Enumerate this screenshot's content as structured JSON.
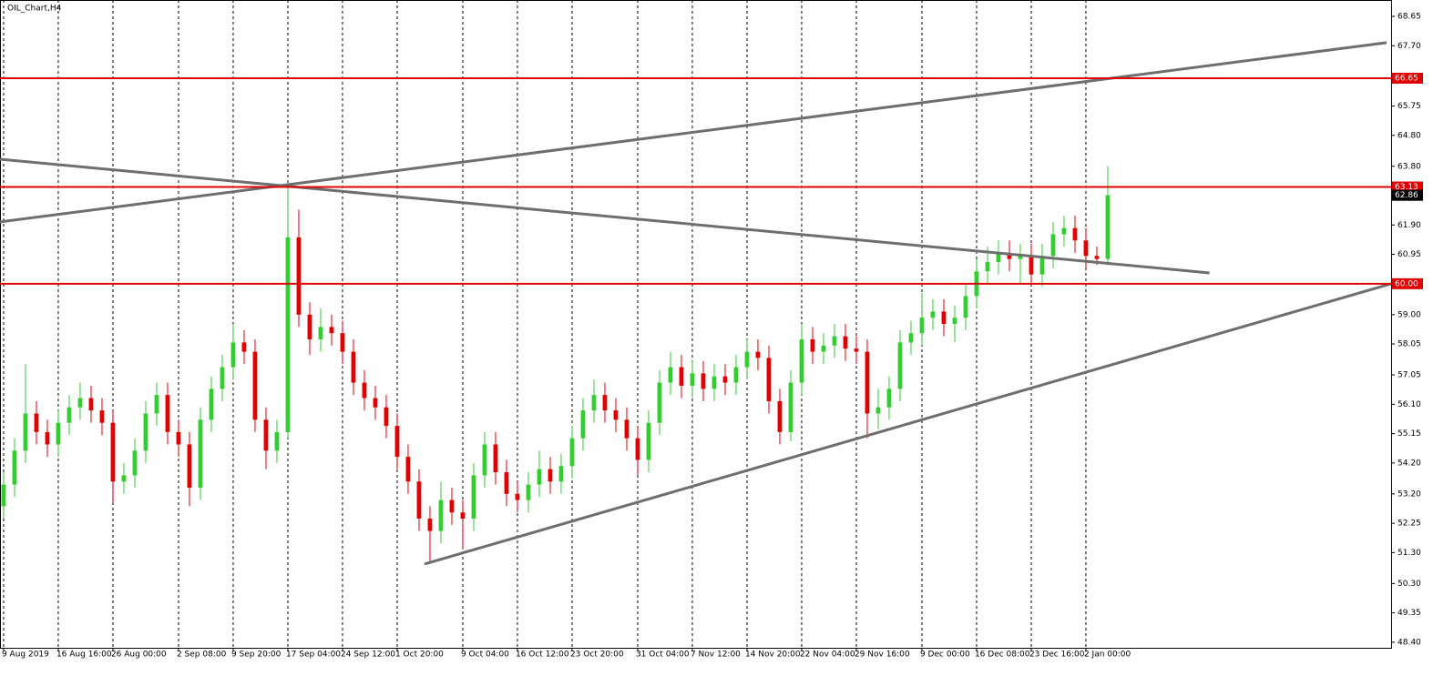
{
  "chart_data": {
    "type": "candlestick",
    "title": "OIL_Chart,H4",
    "open": [
      52.8,
      53.5,
      54.6,
      55.8,
      55.2,
      54.8,
      55.5,
      56.0,
      56.3,
      55.9,
      55.5,
      53.6,
      53.8,
      54.6,
      55.8,
      56.4,
      55.2,
      54.8,
      53.4,
      55.6,
      56.6,
      57.3,
      58.1,
      57.8,
      55.6,
      54.6,
      55.2,
      61.5,
      59.0,
      58.2,
      58.6,
      58.4,
      57.8,
      56.8,
      56.3,
      56.0,
      55.4,
      54.4,
      53.6,
      52.4,
      52.0,
      53.0,
      52.6,
      52.4,
      53.8,
      54.8,
      53.9,
      53.2,
      53.0,
      53.5,
      54.0,
      53.6,
      54.1,
      55.0,
      55.9,
      56.4,
      55.9,
      55.6,
      55.0,
      54.3,
      55.5,
      56.8,
      57.3,
      56.7,
      57.1,
      56.6,
      57.0,
      56.8,
      57.3,
      57.8,
      57.6,
      56.2,
      55.2,
      56.8,
      58.2,
      57.8,
      58.0,
      58.3,
      57.9,
      57.8,
      55.8,
      56.0,
      56.6,
      58.1,
      58.4,
      58.9,
      59.1,
      58.7,
      58.9,
      59.6,
      60.4,
      60.7,
      61.0,
      60.8,
      60.9,
      60.3,
      60.9,
      61.6,
      61.8,
      61.4,
      60.9,
      60.8
    ],
    "high": [
      53.9,
      55.0,
      57.4,
      56.2,
      55.6,
      55.9,
      56.4,
      56.8,
      56.7,
      56.3,
      55.9,
      54.2,
      55.0,
      56.2,
      56.8,
      56.8,
      55.6,
      55.2,
      56.0,
      57.0,
      57.7,
      58.7,
      58.5,
      58.2,
      56.0,
      55.6,
      63.13,
      62.4,
      59.4,
      59.2,
      59.0,
      58.8,
      58.2,
      57.2,
      56.7,
      56.4,
      55.8,
      54.8,
      54.0,
      52.8,
      53.6,
      53.4,
      53.0,
      54.2,
      55.2,
      55.2,
      54.3,
      53.6,
      53.9,
      54.6,
      54.4,
      54.5,
      55.4,
      56.3,
      56.9,
      56.8,
      56.3,
      56.0,
      55.4,
      55.9,
      57.2,
      57.8,
      57.7,
      57.5,
      57.5,
      57.4,
      57.4,
      57.7,
      58.2,
      58.2,
      58.0,
      56.6,
      57.2,
      58.7,
      58.6,
      58.4,
      58.7,
      58.7,
      58.3,
      58.2,
      56.6,
      57.0,
      58.5,
      58.8,
      59.7,
      59.5,
      59.5,
      59.3,
      60.0,
      60.8,
      61.2,
      61.4,
      61.4,
      61.3,
      61.3,
      61.3,
      62.0,
      62.2,
      62.2,
      61.8,
      61.2,
      63.8
    ],
    "low": [
      52.4,
      53.1,
      54.2,
      54.8,
      54.4,
      54.4,
      55.1,
      55.6,
      55.5,
      55.1,
      52.9,
      53.2,
      53.4,
      54.2,
      55.4,
      54.8,
      54.4,
      52.8,
      53.0,
      55.2,
      56.2,
      56.9,
      57.4,
      55.2,
      54.0,
      54.2,
      55.0,
      58.6,
      57.7,
      57.8,
      58.0,
      57.4,
      56.4,
      55.9,
      55.6,
      55.0,
      54.0,
      53.2,
      52.0,
      51.0,
      51.6,
      52.2,
      51.4,
      52.0,
      53.4,
      53.5,
      52.8,
      52.6,
      52.6,
      53.1,
      53.2,
      53.2,
      53.7,
      54.6,
      55.5,
      55.5,
      55.2,
      54.6,
      53.8,
      53.9,
      55.1,
      56.4,
      56.3,
      56.3,
      56.2,
      56.2,
      56.4,
      56.4,
      56.9,
      57.2,
      55.8,
      54.8,
      54.9,
      56.4,
      57.4,
      57.4,
      57.6,
      57.5,
      57.4,
      55.0,
      55.3,
      55.6,
      56.2,
      57.7,
      58.0,
      58.5,
      58.3,
      58.1,
      58.5,
      59.2,
      60.0,
      60.3,
      60.4,
      60.0,
      60.0,
      59.9,
      60.5,
      61.2,
      61.0,
      60.5,
      60.6,
      60.6
    ],
    "close": [
      53.5,
      54.6,
      55.8,
      55.2,
      54.8,
      55.5,
      56.0,
      56.3,
      55.9,
      55.5,
      53.6,
      53.8,
      54.6,
      55.8,
      56.4,
      55.2,
      54.8,
      53.4,
      55.6,
      56.6,
      57.3,
      58.1,
      57.8,
      55.6,
      54.6,
      55.2,
      61.5,
      59.0,
      58.2,
      58.6,
      58.4,
      57.8,
      56.8,
      56.3,
      56.0,
      55.4,
      54.4,
      53.6,
      52.4,
      52.0,
      53.0,
      52.6,
      52.4,
      53.8,
      54.8,
      53.9,
      53.2,
      53.0,
      53.5,
      54.0,
      53.6,
      54.1,
      55.0,
      55.9,
      56.4,
      55.9,
      55.6,
      55.0,
      54.3,
      55.5,
      56.8,
      57.3,
      56.7,
      57.1,
      56.6,
      57.0,
      56.8,
      57.3,
      57.8,
      57.6,
      56.2,
      55.2,
      56.8,
      58.2,
      57.8,
      58.0,
      58.3,
      57.9,
      57.8,
      55.8,
      56.0,
      56.6,
      58.1,
      58.4,
      58.9,
      59.1,
      58.7,
      58.9,
      59.6,
      60.4,
      60.7,
      61.0,
      60.8,
      60.9,
      60.3,
      60.9,
      61.6,
      61.8,
      61.4,
      60.9,
      60.8,
      62.86
    ],
    "up_color": "#32cd32",
    "down_color": "#e00000",
    "xlim": [
      -0.33,
      126.92
    ],
    "xticks": [
      {
        "value": 0,
        "label": "9 Aug 2019"
      },
      {
        "value": 5,
        "label": "16 Aug 16:00"
      },
      {
        "value": 10,
        "label": "26 Aug 00:00"
      },
      {
        "value": 16,
        "label": "2 Sep 08:00"
      },
      {
        "value": 21,
        "label": "9 Sep 20:00"
      },
      {
        "value": 26,
        "label": "17 Sep 04:00"
      },
      {
        "value": 31,
        "label": "24 Sep 12:00"
      },
      {
        "value": 36,
        "label": "1 Oct 20:00"
      },
      {
        "value": 42,
        "label": "9 Oct 04:00"
      },
      {
        "value": 47,
        "label": "16 Oct 12:00"
      },
      {
        "value": 52,
        "label": "23 Oct 20:00"
      },
      {
        "value": 58,
        "label": "31 Oct 04:00"
      },
      {
        "value": 63,
        "label": "7 Nov 12:00"
      },
      {
        "value": 68,
        "label": "14 Nov 20:00"
      },
      {
        "value": 73,
        "label": "22 Nov 04:00"
      },
      {
        "value": 78,
        "label": "29 Nov 16:00"
      },
      {
        "value": 84,
        "label": "9 Dec 00:00"
      },
      {
        "value": 89,
        "label": "16 Dec 08:00"
      },
      {
        "value": 94,
        "label": "23 Dec 16:00"
      },
      {
        "value": 99,
        "label": "2 Jan 00:00"
      }
    ],
    "ylim": [
      48.22,
      69.18
    ],
    "yticks": [
      68.65,
      {
        "value": 67.7,
        "label": "67.70"
      },
      65.75,
      {
        "value": 64.8,
        "label": "64.80"
      },
      {
        "value": 63.8,
        "label": "63.80"
      },
      {
        "value": 61.9,
        "label": "61.90"
      },
      60.95,
      {
        "value": 59,
        "label": "59.00"
      },
      58.05,
      57.05,
      {
        "value": 56.1,
        "label": "56.10"
      },
      55.15,
      {
        "value": 54.2,
        "label": "54.20"
      },
      {
        "value": 53.2,
        "label": "53.20"
      },
      52.25,
      {
        "value": 51.3,
        "label": "51.30"
      },
      {
        "value": 50.3,
        "label": "50.30"
      },
      49.35,
      {
        "value": 48.4,
        "label": "48.40"
      }
    ],
    "levels": [
      {
        "value": 66.65
      },
      {
        "value": 63.13
      },
      {
        "value": 60,
        "label": "60.00"
      }
    ],
    "level_color": "#e00000",
    "trendlines": [
      {
        "x": [
          -0.33,
          126.5
        ],
        "y": [
          62.0,
          67.8
        ]
      },
      {
        "x": [
          -0.33,
          110.3
        ],
        "y": [
          64.03,
          60.35
        ]
      },
      {
        "x": [
          38.5,
          126.92
        ],
        "y": [
          50.93,
          60.0
        ]
      }
    ],
    "trend_color": "#6e6e6e"
  }
}
